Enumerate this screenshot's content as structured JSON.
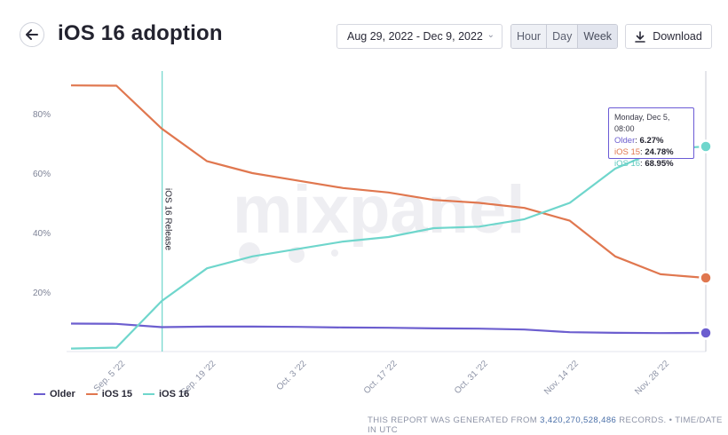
{
  "header": {
    "title": "iOS 16 adoption",
    "date_range": "Aug 29, 2022 - Dec 9, 2022",
    "granularity": [
      "Hour",
      "Day",
      "Week"
    ],
    "selected_granularity": "Week",
    "download_label": "Download"
  },
  "tooltip": {
    "heading": "Monday, Dec 5, 08:00",
    "rows": [
      {
        "label": "Older",
        "value": "6.27%"
      },
      {
        "label": "iOS 15",
        "value": "24.78%"
      },
      {
        "label": "iOS 16",
        "value": "68.95%"
      }
    ]
  },
  "footer": {
    "prefix": "THIS REPORT WAS GENERATED FROM",
    "records": "3,420,270,528,486",
    "suffix": "RECORDS. • TIME/DATE IN UTC"
  },
  "watermark": "mixpanel",
  "colors": {
    "older": "#6c5ecf",
    "ios15": "#e0774f",
    "ios16": "#6fd6cc"
  },
  "chart_data": {
    "type": "line",
    "title": "iOS 16 adoption",
    "xlabel": "",
    "ylabel": "",
    "y_ticks": [
      "20%",
      "40%",
      "60%",
      "80%"
    ],
    "ylim": [
      0,
      92
    ],
    "x_ticks": [
      "Sep. 5 '22",
      "Sep. 19 '22",
      "Oct. 3 '22",
      "Oct. 17 '22",
      "Oct. 31 '22",
      "Nov. 14 '22",
      "Nov. 28 '22"
    ],
    "x": [
      "2022-08-29",
      "2022-09-05",
      "2022-09-12",
      "2022-09-19",
      "2022-09-26",
      "2022-10-03",
      "2022-10-10",
      "2022-10-17",
      "2022-10-24",
      "2022-10-31",
      "2022-11-07",
      "2022-11-14",
      "2022-11-21",
      "2022-11-28",
      "2022-12-05"
    ],
    "series": [
      {
        "name": "Older",
        "values": [
          9.4,
          9.3,
          8.2,
          8.4,
          8.4,
          8.3,
          8.1,
          8.0,
          7.8,
          7.7,
          7.4,
          6.5,
          6.3,
          6.2,
          6.27
        ]
      },
      {
        "name": "iOS 15",
        "values": [
          89.5,
          89.4,
          75,
          64,
          60,
          57.5,
          55,
          53.5,
          51,
          50,
          48.3,
          44,
          32,
          26,
          24.78
        ]
      },
      {
        "name": "iOS 16",
        "values": [
          1.0,
          1.3,
          17,
          28,
          32,
          34.5,
          37,
          38.5,
          41.5,
          42,
          44.5,
          50,
          61.5,
          68,
          68.95
        ]
      }
    ],
    "annotations": [
      {
        "label": "iOS 16 Release",
        "x": "2022-09-12"
      }
    ],
    "grid": false,
    "legend": "bottom-left"
  }
}
